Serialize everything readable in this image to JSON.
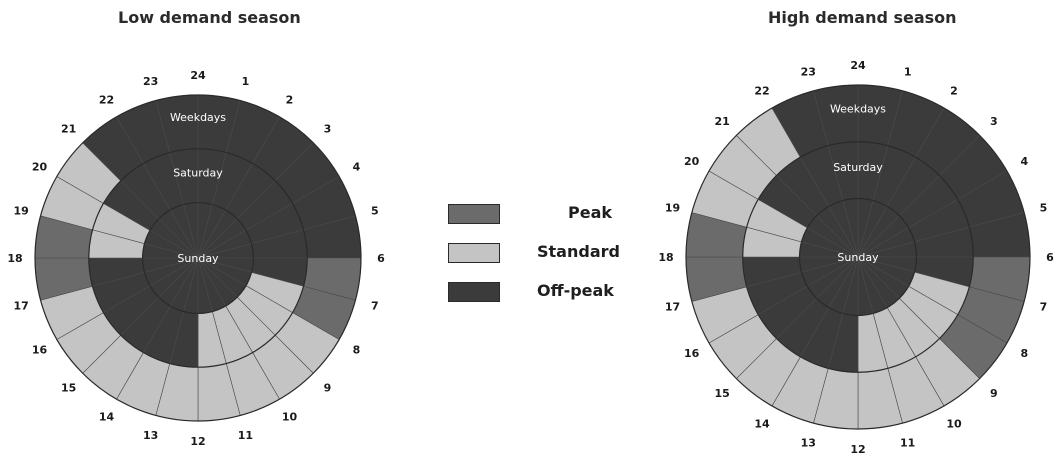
{
  "titles": {
    "low": "Low demand season",
    "high": "High demand season"
  },
  "rings": {
    "outer": "Weekdays",
    "middle": "Saturday",
    "inner": "Sunday"
  },
  "hours": [
    "1",
    "2",
    "3",
    "4",
    "5",
    "6",
    "7",
    "8",
    "9",
    "10",
    "11",
    "12",
    "13",
    "14",
    "15",
    "16",
    "17",
    "18",
    "19",
    "20",
    "21",
    "22",
    "23",
    "24"
  ],
  "legend": [
    {
      "key": "P",
      "label": "Peak",
      "color": "#6b6b6b"
    },
    {
      "key": "S",
      "label": "Standard",
      "color": "#c4c4c4"
    },
    {
      "key": "O",
      "label": "Off-peak",
      "color": "#3b3b3b"
    }
  ],
  "schedules": {
    "low": {
      "weekdays": [
        "O",
        "O",
        "O",
        "O",
        "O",
        "O",
        "P",
        "P",
        "S",
        "S",
        "S",
        "S",
        "S",
        "S",
        "S",
        "S",
        "S",
        "P",
        "P",
        "S",
        "S",
        "O",
        "O",
        "O"
      ],
      "saturday": [
        "O",
        "O",
        "O",
        "O",
        "O",
        "O",
        "O",
        "S",
        "S",
        "S",
        "S",
        "S",
        "O",
        "O",
        "O",
        "O",
        "O",
        "O",
        "S",
        "S",
        "O",
        "O",
        "O",
        "O"
      ],
      "sunday": [
        "O",
        "O",
        "O",
        "O",
        "O",
        "O",
        "O",
        "O",
        "O",
        "O",
        "O",
        "O",
        "O",
        "O",
        "O",
        "O",
        "O",
        "O",
        "O",
        "O",
        "O",
        "O",
        "O",
        "O"
      ]
    },
    "high": {
      "weekdays": [
        "O",
        "O",
        "O",
        "O",
        "O",
        "O",
        "P",
        "P",
        "P",
        "S",
        "S",
        "S",
        "S",
        "S",
        "S",
        "S",
        "S",
        "P",
        "P",
        "S",
        "S",
        "S",
        "O",
        "O"
      ],
      "saturday": [
        "O",
        "O",
        "O",
        "O",
        "O",
        "O",
        "O",
        "S",
        "S",
        "S",
        "S",
        "S",
        "O",
        "O",
        "O",
        "O",
        "O",
        "O",
        "S",
        "S",
        "O",
        "O",
        "O",
        "O"
      ],
      "sunday": [
        "O",
        "O",
        "O",
        "O",
        "O",
        "O",
        "O",
        "O",
        "O",
        "O",
        "O",
        "O",
        "O",
        "O",
        "O",
        "O",
        "O",
        "O",
        "O",
        "O",
        "O",
        "O",
        "O",
        "O"
      ]
    }
  }
}
